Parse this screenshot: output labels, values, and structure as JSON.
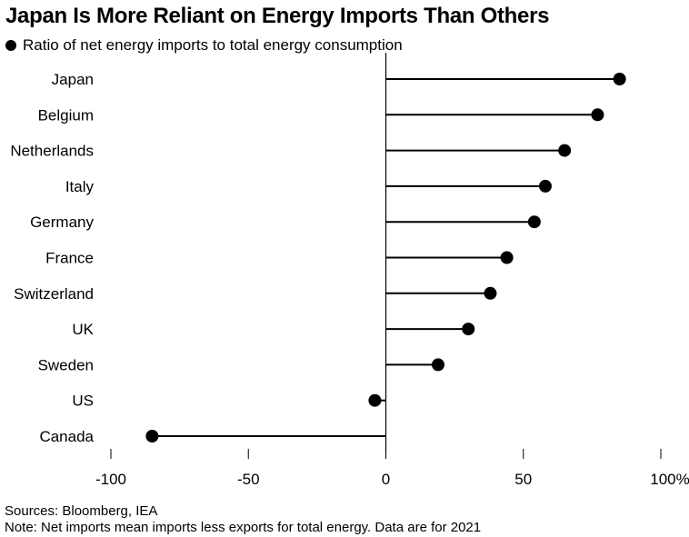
{
  "chart_data": {
    "type": "lollipop",
    "title": "Japan Is More Reliant on Energy Imports Than Others",
    "series": [
      {
        "name": "Ratio of net energy imports to total energy consumption"
      }
    ],
    "categories": [
      "Japan",
      "Belgium",
      "Netherlands",
      "Italy",
      "Germany",
      "France",
      "Switzerland",
      "UK",
      "Sweden",
      "US",
      "Canada"
    ],
    "values": [
      85,
      77,
      65,
      58,
      54,
      44,
      38,
      30,
      19,
      -4,
      -85
    ],
    "xlim": [
      -100,
      100
    ],
    "x_ticks": [
      -100,
      -50,
      0,
      50,
      100
    ],
    "x_tick_labels": [
      "-100",
      "-50",
      "0",
      "50",
      "100%"
    ],
    "legend_position": "top-left",
    "grid": false
  },
  "footer": {
    "sources": "Sources: Bloomberg, IEA",
    "note": "Note: Net imports mean imports less exports for total energy. Data are for 2021"
  }
}
